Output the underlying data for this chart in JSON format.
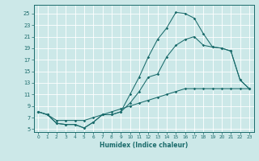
{
  "xlabel": "Humidex (Indice chaleur)",
  "bg_color": "#cce8e8",
  "grid_color": "#ffffff",
  "line_color": "#1a6b6b",
  "xlim": [
    -0.5,
    23.5
  ],
  "ylim": [
    4.5,
    26.5
  ],
  "xticks": [
    0,
    1,
    2,
    3,
    4,
    5,
    6,
    7,
    8,
    9,
    10,
    11,
    12,
    13,
    14,
    15,
    16,
    17,
    18,
    19,
    20,
    21,
    22,
    23
  ],
  "yticks": [
    5,
    7,
    9,
    11,
    13,
    15,
    17,
    19,
    21,
    23,
    25
  ],
  "curve1_x": [
    0,
    1,
    2,
    3,
    4,
    5,
    6,
    7,
    8,
    9,
    10,
    11,
    12,
    13,
    14,
    15,
    16,
    17,
    18,
    19,
    20,
    21,
    22,
    23
  ],
  "curve1_y": [
    8.0,
    7.5,
    6.0,
    5.8,
    5.8,
    5.2,
    6.2,
    7.5,
    7.5,
    8.0,
    11.0,
    14.0,
    17.5,
    20.5,
    22.5,
    25.2,
    25.0,
    24.2,
    21.5,
    19.2,
    19.0,
    18.5,
    13.5,
    12.0
  ],
  "curve2_x": [
    0,
    1,
    2,
    3,
    4,
    5,
    6,
    7,
    8,
    9,
    10,
    11,
    12,
    13,
    14,
    15,
    16,
    17,
    18,
    19,
    20,
    21,
    22,
    23
  ],
  "curve2_y": [
    8.0,
    7.5,
    6.0,
    5.8,
    5.8,
    5.2,
    6.2,
    7.5,
    7.5,
    8.0,
    9.5,
    11.5,
    14.0,
    14.5,
    17.5,
    19.5,
    20.5,
    21.0,
    19.5,
    19.2,
    19.0,
    18.5,
    13.5,
    12.0
  ],
  "curve3_x": [
    0,
    1,
    2,
    3,
    4,
    5,
    6,
    7,
    8,
    9,
    10,
    11,
    12,
    13,
    14,
    15,
    16,
    17,
    18,
    19,
    20,
    21,
    22,
    23
  ],
  "curve3_y": [
    8.0,
    7.5,
    6.5,
    6.5,
    6.5,
    6.5,
    7.0,
    7.5,
    8.0,
    8.5,
    9.0,
    9.5,
    10.0,
    10.5,
    11.0,
    11.5,
    12.0,
    12.0,
    12.0,
    12.0,
    12.0,
    12.0,
    12.0,
    12.0
  ]
}
